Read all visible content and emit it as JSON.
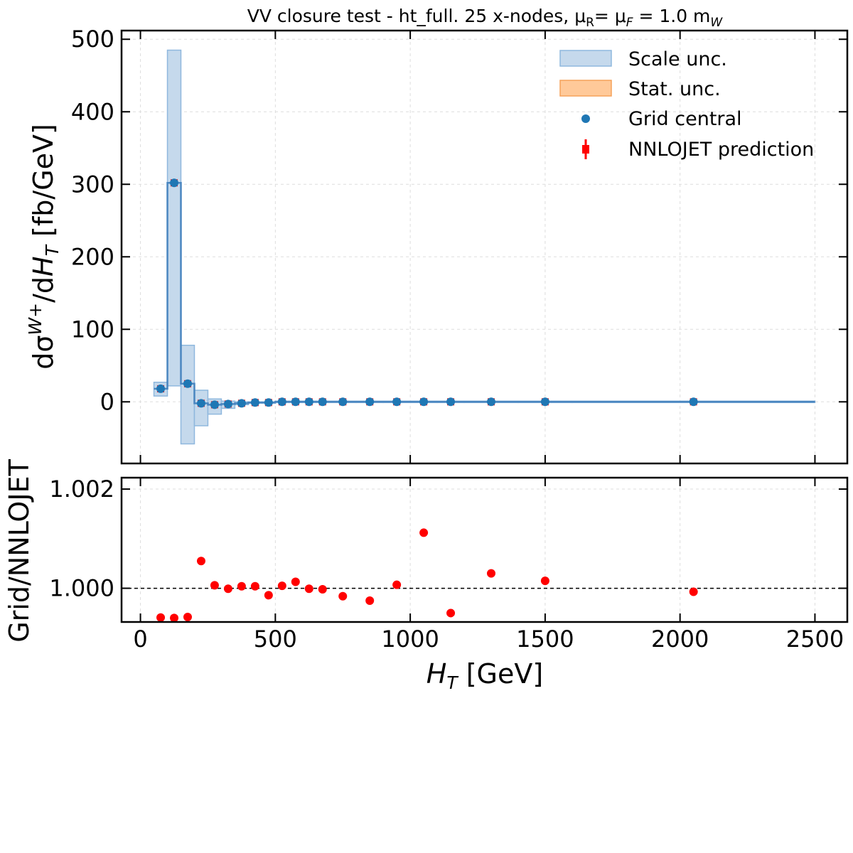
{
  "chart_data": [
    {
      "type": "scatter",
      "panel": "main",
      "title": "VV closure test  -  ht_full. 25 x-nodes, μR= μF = 1.0 mW",
      "title_parts": {
        "prefix": "VV closure test  -  ht_full. 25 x-nodes, μ",
        "sub1": "R",
        "mid": "= μ",
        "sub2": "F",
        "mid2": " = 1.0 m",
        "sub3": "W"
      },
      "ylabel": "dσW+/dHT  [fb/GeV]",
      "ylabel_parts": {
        "d1": "dσ",
        "sup": "W",
        "supplus": "+",
        "mid": "/d",
        "h": "H",
        "sub": "T",
        "unit": "  [fb/GeV]"
      },
      "xlim": [
        -70,
        2620
      ],
      "ylim": [
        -85,
        512
      ],
      "yticks": [
        0,
        100,
        200,
        300,
        400,
        500
      ],
      "grid": true,
      "legend": {
        "placement": "top-right",
        "entries": [
          "Scale unc.",
          "Stat. unc.",
          "Grid central",
          "NNLOJET prediction"
        ]
      },
      "bins": [
        {
          "lo": 50,
          "hi": 100,
          "center": 75,
          "value": 18,
          "scale_lo": 8,
          "scale_hi": 27
        },
        {
          "lo": 100,
          "hi": 150,
          "center": 125,
          "value": 302,
          "scale_lo": 22,
          "scale_hi": 485
        },
        {
          "lo": 150,
          "hi": 200,
          "center": 175,
          "value": 25,
          "scale_lo": -58,
          "scale_hi": 78
        },
        {
          "lo": 200,
          "hi": 250,
          "center": 225,
          "value": -2,
          "scale_lo": -33,
          "scale_hi": 16
        },
        {
          "lo": 250,
          "hi": 300,
          "center": 275,
          "value": -4,
          "scale_lo": -17,
          "scale_hi": 4
        },
        {
          "lo": 300,
          "hi": 350,
          "center": 325,
          "value": -3,
          "scale_lo": -9,
          "scale_hi": 1
        },
        {
          "lo": 350,
          "hi": 400,
          "center": 375,
          "value": -2,
          "scale_lo": -4,
          "scale_hi": 0
        },
        {
          "lo": 400,
          "hi": 450,
          "center": 425,
          "value": -1,
          "scale_lo": -2,
          "scale_hi": 0
        },
        {
          "lo": 450,
          "hi": 500,
          "center": 475,
          "value": -1,
          "scale_lo": -2,
          "scale_hi": 0
        },
        {
          "lo": 500,
          "hi": 550,
          "center": 525,
          "value": 0,
          "scale_lo": -1,
          "scale_hi": 1
        },
        {
          "lo": 550,
          "hi": 600,
          "center": 575,
          "value": 0,
          "scale_lo": -1,
          "scale_hi": 1
        },
        {
          "lo": 600,
          "hi": 650,
          "center": 625,
          "value": 0,
          "scale_lo": -1,
          "scale_hi": 1
        },
        {
          "lo": 650,
          "hi": 700,
          "center": 675,
          "value": 0,
          "scale_lo": -1,
          "scale_hi": 1
        },
        {
          "lo": 700,
          "hi": 800,
          "center": 750,
          "value": 0,
          "scale_lo": -1,
          "scale_hi": 1
        },
        {
          "lo": 800,
          "hi": 900,
          "center": 850,
          "value": 0,
          "scale_lo": -1,
          "scale_hi": 1
        },
        {
          "lo": 900,
          "hi": 1000,
          "center": 950,
          "value": 0,
          "scale_lo": -1,
          "scale_hi": 1
        },
        {
          "lo": 1000,
          "hi": 1100,
          "center": 1050,
          "value": 0,
          "scale_lo": -1,
          "scale_hi": 1
        },
        {
          "lo": 1100,
          "hi": 1200,
          "center": 1150,
          "value": 0,
          "scale_lo": -1,
          "scale_hi": 1
        },
        {
          "lo": 1200,
          "hi": 1400,
          "center": 1300,
          "value": 0,
          "scale_lo": -1,
          "scale_hi": 1
        },
        {
          "lo": 1400,
          "hi": 1600,
          "center": 1500,
          "value": 0,
          "scale_lo": -1,
          "scale_hi": 1
        },
        {
          "lo": 1600,
          "hi": 2500,
          "center": 2050,
          "value": 0,
          "scale_lo": -1,
          "scale_hi": 1
        }
      ]
    },
    {
      "type": "scatter",
      "panel": "ratio",
      "xlabel": "HT [GeV]",
      "xlabel_parts": {
        "h": "H",
        "sub": "T",
        "unit": " [GeV]"
      },
      "ylabel": "Grid/NNLOJET",
      "xlim": [
        -70,
        2620
      ],
      "ylim": [
        0.99932,
        1.00223
      ],
      "xticks": [
        0,
        500,
        1000,
        1500,
        2000,
        2500
      ],
      "yticks": [
        1.0,
        1.002
      ],
      "ytick_labels": [
        "1.000",
        "1.002"
      ],
      "reference_line": 1.0,
      "grid": true,
      "points": [
        {
          "x": 75,
          "y": 0.99941
        },
        {
          "x": 125,
          "y": 0.9994
        },
        {
          "x": 175,
          "y": 0.99942
        },
        {
          "x": 225,
          "y": 1.00055
        },
        {
          "x": 275,
          "y": 1.00006
        },
        {
          "x": 325,
          "y": 0.99999
        },
        {
          "x": 375,
          "y": 1.00004
        },
        {
          "x": 425,
          "y": 1.00004
        },
        {
          "x": 475,
          "y": 0.99986
        },
        {
          "x": 525,
          "y": 1.00005
        },
        {
          "x": 575,
          "y": 1.00013
        },
        {
          "x": 625,
          "y": 0.99999
        },
        {
          "x": 675,
          "y": 0.99998
        },
        {
          "x": 750,
          "y": 0.99984
        },
        {
          "x": 850,
          "y": 0.99975
        },
        {
          "x": 950,
          "y": 1.00007
        },
        {
          "x": 1050,
          "y": 1.00112
        },
        {
          "x": 1150,
          "y": 0.9995
        },
        {
          "x": 1300,
          "y": 1.0003
        },
        {
          "x": 1500,
          "y": 1.00015
        },
        {
          "x": 2050,
          "y": 0.99993
        }
      ]
    }
  ],
  "colors": {
    "scale_fill": "#c5d9ec",
    "scale_edge": "#8fb8de",
    "stat_fill": "#ffc999",
    "stat_edge": "#f5a25a",
    "grid_central": "#1f77b4",
    "nnlojet": "#ff0000",
    "step_line": "#4a86c0"
  }
}
